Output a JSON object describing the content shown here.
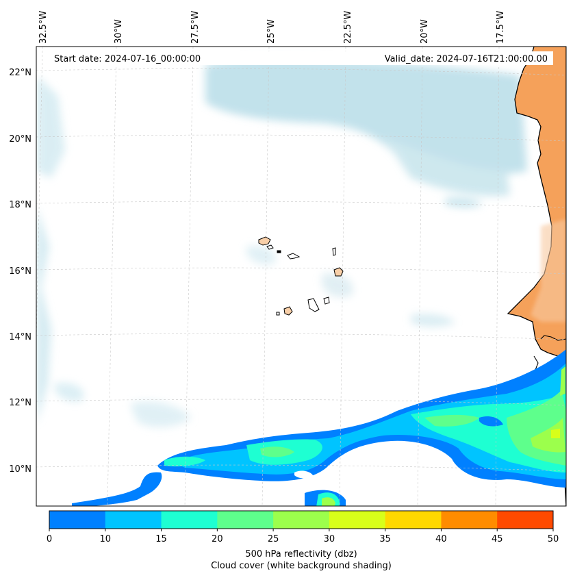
{
  "map": {
    "start_date_label": "Start date: 2024-07-16_00:00:00",
    "valid_date_label": "Valid_date: 2024-07-16T21:00:00.00",
    "lon_labels": [
      "32.5°W",
      "30°W",
      "27.5°W",
      "25°W",
      "22.5°W",
      "20°W",
      "17.5°W"
    ],
    "lat_labels": [
      "22°N",
      "20°N",
      "18°N",
      "16°N",
      "14°N",
      "12°N",
      "10°N"
    ]
  },
  "colorbar": {
    "ticks": [
      "0",
      "10",
      "15",
      "20",
      "25",
      "30",
      "35",
      "40",
      "45",
      "50"
    ],
    "colors": [
      "#0080ff",
      "#00c4ff",
      "#1effd2",
      "#5eff8c",
      "#9cff4c",
      "#d8ff1a",
      "#ffd800",
      "#ff8c00",
      "#ff4a00"
    ],
    "title": "500 hPa reflectivity (dbz)",
    "subtitle": "Cloud cover (white background shading)"
  },
  "colors": {
    "land": "#f5a15a",
    "island": "#f8cfa8",
    "cloud": "#b8dde8",
    "grid": "#c8c8c8"
  }
}
